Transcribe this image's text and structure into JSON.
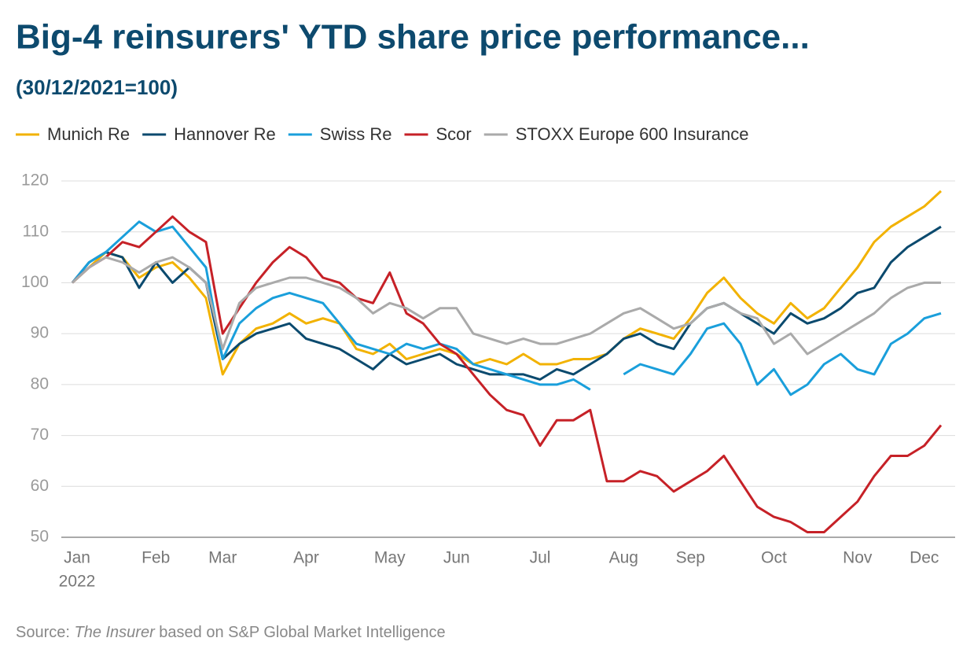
{
  "chart_data": {
    "type": "line",
    "title": "Big-4 reinsurers' YTD share price performance...",
    "subtitle": "(30/12/2021=100)",
    "source": {
      "prefix": "Source: ",
      "italic": "The Insurer",
      "suffix": " based on S&P Global Market Intelligence"
    },
    "x_year_label": "2022",
    "categories": [
      "Jan",
      null,
      null,
      null,
      null,
      "Feb",
      null,
      null,
      null,
      "Mar",
      null,
      null,
      null,
      null,
      "Apr",
      null,
      null,
      null,
      null,
      "May",
      null,
      null,
      null,
      "Jun",
      null,
      null,
      null,
      null,
      "Jul",
      null,
      null,
      null,
      null,
      "Aug",
      null,
      null,
      null,
      "Sep",
      null,
      null,
      null,
      null,
      "Oct",
      null,
      null,
      null,
      null,
      "Nov",
      null,
      null,
      null,
      "Dec",
      null
    ],
    "series": [
      {
        "name": "Munich Re",
        "color": "#f2b200",
        "values": [
          100,
          103,
          106,
          105,
          101,
          103,
          104,
          101,
          97,
          82,
          88,
          91,
          92,
          94,
          92,
          93,
          92,
          87,
          86,
          88,
          85,
          86,
          87,
          86,
          84,
          85,
          84,
          86,
          84,
          84,
          85,
          85,
          86,
          89,
          91,
          90,
          89,
          93,
          98,
          101,
          97,
          94,
          92,
          96,
          93,
          95,
          99,
          103,
          108,
          111,
          113,
          115,
          118
        ]
      },
      {
        "name": "Hannover Re",
        "color": "#0b4a6e",
        "values": [
          100,
          104,
          106,
          105,
          99,
          104,
          100,
          103,
          100,
          85,
          88,
          90,
          91,
          92,
          89,
          88,
          87,
          85,
          83,
          86,
          84,
          85,
          86,
          84,
          83,
          82,
          82,
          82,
          81,
          83,
          82,
          84,
          86,
          89,
          90,
          88,
          87,
          92,
          95,
          96,
          94,
          92,
          90,
          94,
          92,
          93,
          95,
          98,
          99,
          104,
          107,
          109,
          111
        ]
      },
      {
        "name": "Swiss Re",
        "color": "#1a9fdb",
        "values": [
          100,
          104,
          106,
          109,
          112,
          110,
          111,
          107,
          103,
          85,
          92,
          95,
          97,
          98,
          97,
          96,
          92,
          88,
          87,
          86,
          88,
          87,
          88,
          87,
          84,
          83,
          82,
          81,
          80,
          80,
          81,
          79,
          null,
          82,
          84,
          83,
          82,
          86,
          91,
          92,
          88,
          80,
          83,
          78,
          80,
          84,
          86,
          83,
          82,
          88,
          90,
          93,
          94
        ]
      },
      {
        "name": "Scor",
        "color": "#c62127",
        "values": [
          100,
          103,
          105,
          108,
          107,
          110,
          113,
          110,
          108,
          90,
          95,
          100,
          104,
          107,
          105,
          101,
          100,
          97,
          96,
          102,
          94,
          92,
          88,
          86,
          82,
          78,
          75,
          74,
          68,
          73,
          73,
          75,
          61,
          61,
          63,
          62,
          59,
          61,
          63,
          66,
          61,
          56,
          54,
          53,
          51,
          51,
          54,
          57,
          62,
          66,
          66,
          68,
          72
        ]
      },
      {
        "name": "STOXX Europe 600 Insurance",
        "color": "#aaaaaa",
        "values": [
          100,
          103,
          105,
          104,
          102,
          104,
          105,
          103,
          100,
          87,
          96,
          99,
          100,
          101,
          101,
          100,
          99,
          97,
          94,
          96,
          95,
          93,
          95,
          95,
          90,
          89,
          88,
          89,
          88,
          88,
          89,
          90,
          92,
          94,
          95,
          93,
          91,
          92,
          95,
          96,
          94,
          93,
          88,
          90,
          86,
          88,
          90,
          92,
          94,
          97,
          99,
          100,
          100
        ]
      }
    ],
    "ylim": [
      50,
      120
    ],
    "yticks": [
      50,
      60,
      70,
      80,
      90,
      100,
      110,
      120
    ],
    "grid": true,
    "legend": "top"
  }
}
